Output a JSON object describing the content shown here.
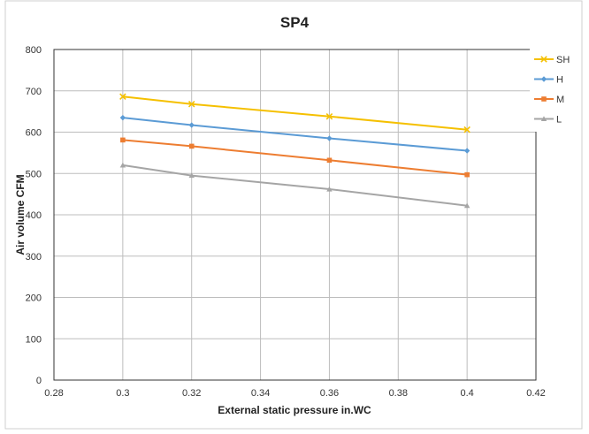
{
  "chart_data": {
    "type": "line",
    "title": "SP4",
    "xlabel": "External static pressure  in.WC",
    "ylabel": "Air volume  CFM",
    "xlim": [
      0.28,
      0.42
    ],
    "ylim": [
      0,
      800
    ],
    "x_ticks": [
      "0.28",
      "0.3",
      "0.32",
      "0.34",
      "0.36",
      "0.38",
      "0.4",
      "0.42"
    ],
    "y_ticks": [
      "0",
      "100",
      "200",
      "300",
      "400",
      "500",
      "600",
      "700",
      "800"
    ],
    "grid": true,
    "legend_position": "right",
    "x": [
      0.3,
      0.32,
      0.36,
      0.4
    ],
    "series": [
      {
        "name": "SH",
        "color": "#F5C000",
        "marker": "x",
        "values": [
          686,
          668,
          638,
          606
        ]
      },
      {
        "name": "H",
        "color": "#5B9BD5",
        "marker": "diamond",
        "values": [
          635,
          617,
          585,
          555
        ]
      },
      {
        "name": "M",
        "color": "#ED7D31",
        "marker": "square",
        "values": [
          581,
          566,
          532,
          497
        ]
      },
      {
        "name": "L",
        "color": "#A5A5A5",
        "marker": "triangle",
        "values": [
          520,
          495,
          462,
          422
        ]
      }
    ]
  }
}
